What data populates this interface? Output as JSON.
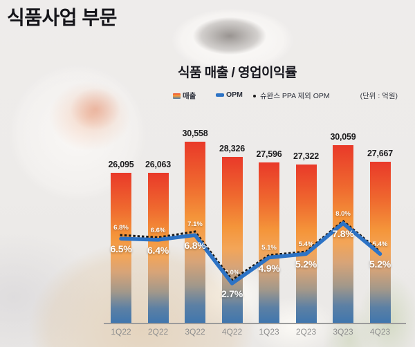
{
  "header": {
    "title": "식품사업 부문"
  },
  "chart": {
    "title": "식품 매출 / 영업이익률",
    "unit_label": "(단위 : 억원)",
    "legend": [
      {
        "label": "매출"
      },
      {
        "label": "OPM"
      },
      {
        "label": "슈완스 PPA 제외 OPM"
      }
    ]
  },
  "chart_data": {
    "type": "bar+line",
    "title": "식품 매출 / 영업이익률",
    "unit": "억원",
    "categories": [
      "1Q22",
      "2Q22",
      "3Q22",
      "4Q22",
      "1Q23",
      "2Q23",
      "3Q23",
      "4Q23"
    ],
    "series": [
      {
        "name": "매출",
        "type": "bar",
        "values": [
          26095,
          26063,
          30558,
          28326,
          27596,
          27322,
          30059,
          27667
        ],
        "labels": [
          "26,095",
          "26,063",
          "30,558",
          "28,326",
          "27,596",
          "27,322",
          "30,059",
          "27,667"
        ]
      },
      {
        "name": "OPM",
        "type": "line",
        "values": [
          6.5,
          6.4,
          6.8,
          2.7,
          4.9,
          5.2,
          7.8,
          5.2
        ],
        "labels": [
          "6.5%",
          "6.4%",
          "6.8%",
          "2.7%",
          "4.9%",
          "5.2%",
          "7.8%",
          "5.2%"
        ]
      },
      {
        "name": "슈완스 PPA 제외 OPM",
        "type": "dotted-line",
        "values": [
          6.8,
          6.6,
          7.1,
          3.0,
          5.1,
          5.4,
          8.0,
          5.4
        ],
        "labels": [
          "6.8%",
          "6.6%",
          "7.1%",
          "3.0%",
          "5.1%",
          "5.4%",
          "8.0%",
          "5.4%"
        ]
      }
    ],
    "colors": {
      "bar_top": "#e93929",
      "bar_mid": "#f4953a",
      "bar_bottom": "#3f76ae",
      "opm_line": "#2d73c5",
      "ppa_line": "#161616",
      "value_label": "#1c1c1e",
      "axis_label": "#8e8e8e"
    },
    "legend_position": "top",
    "grid": false,
    "x_axis_line": true
  }
}
